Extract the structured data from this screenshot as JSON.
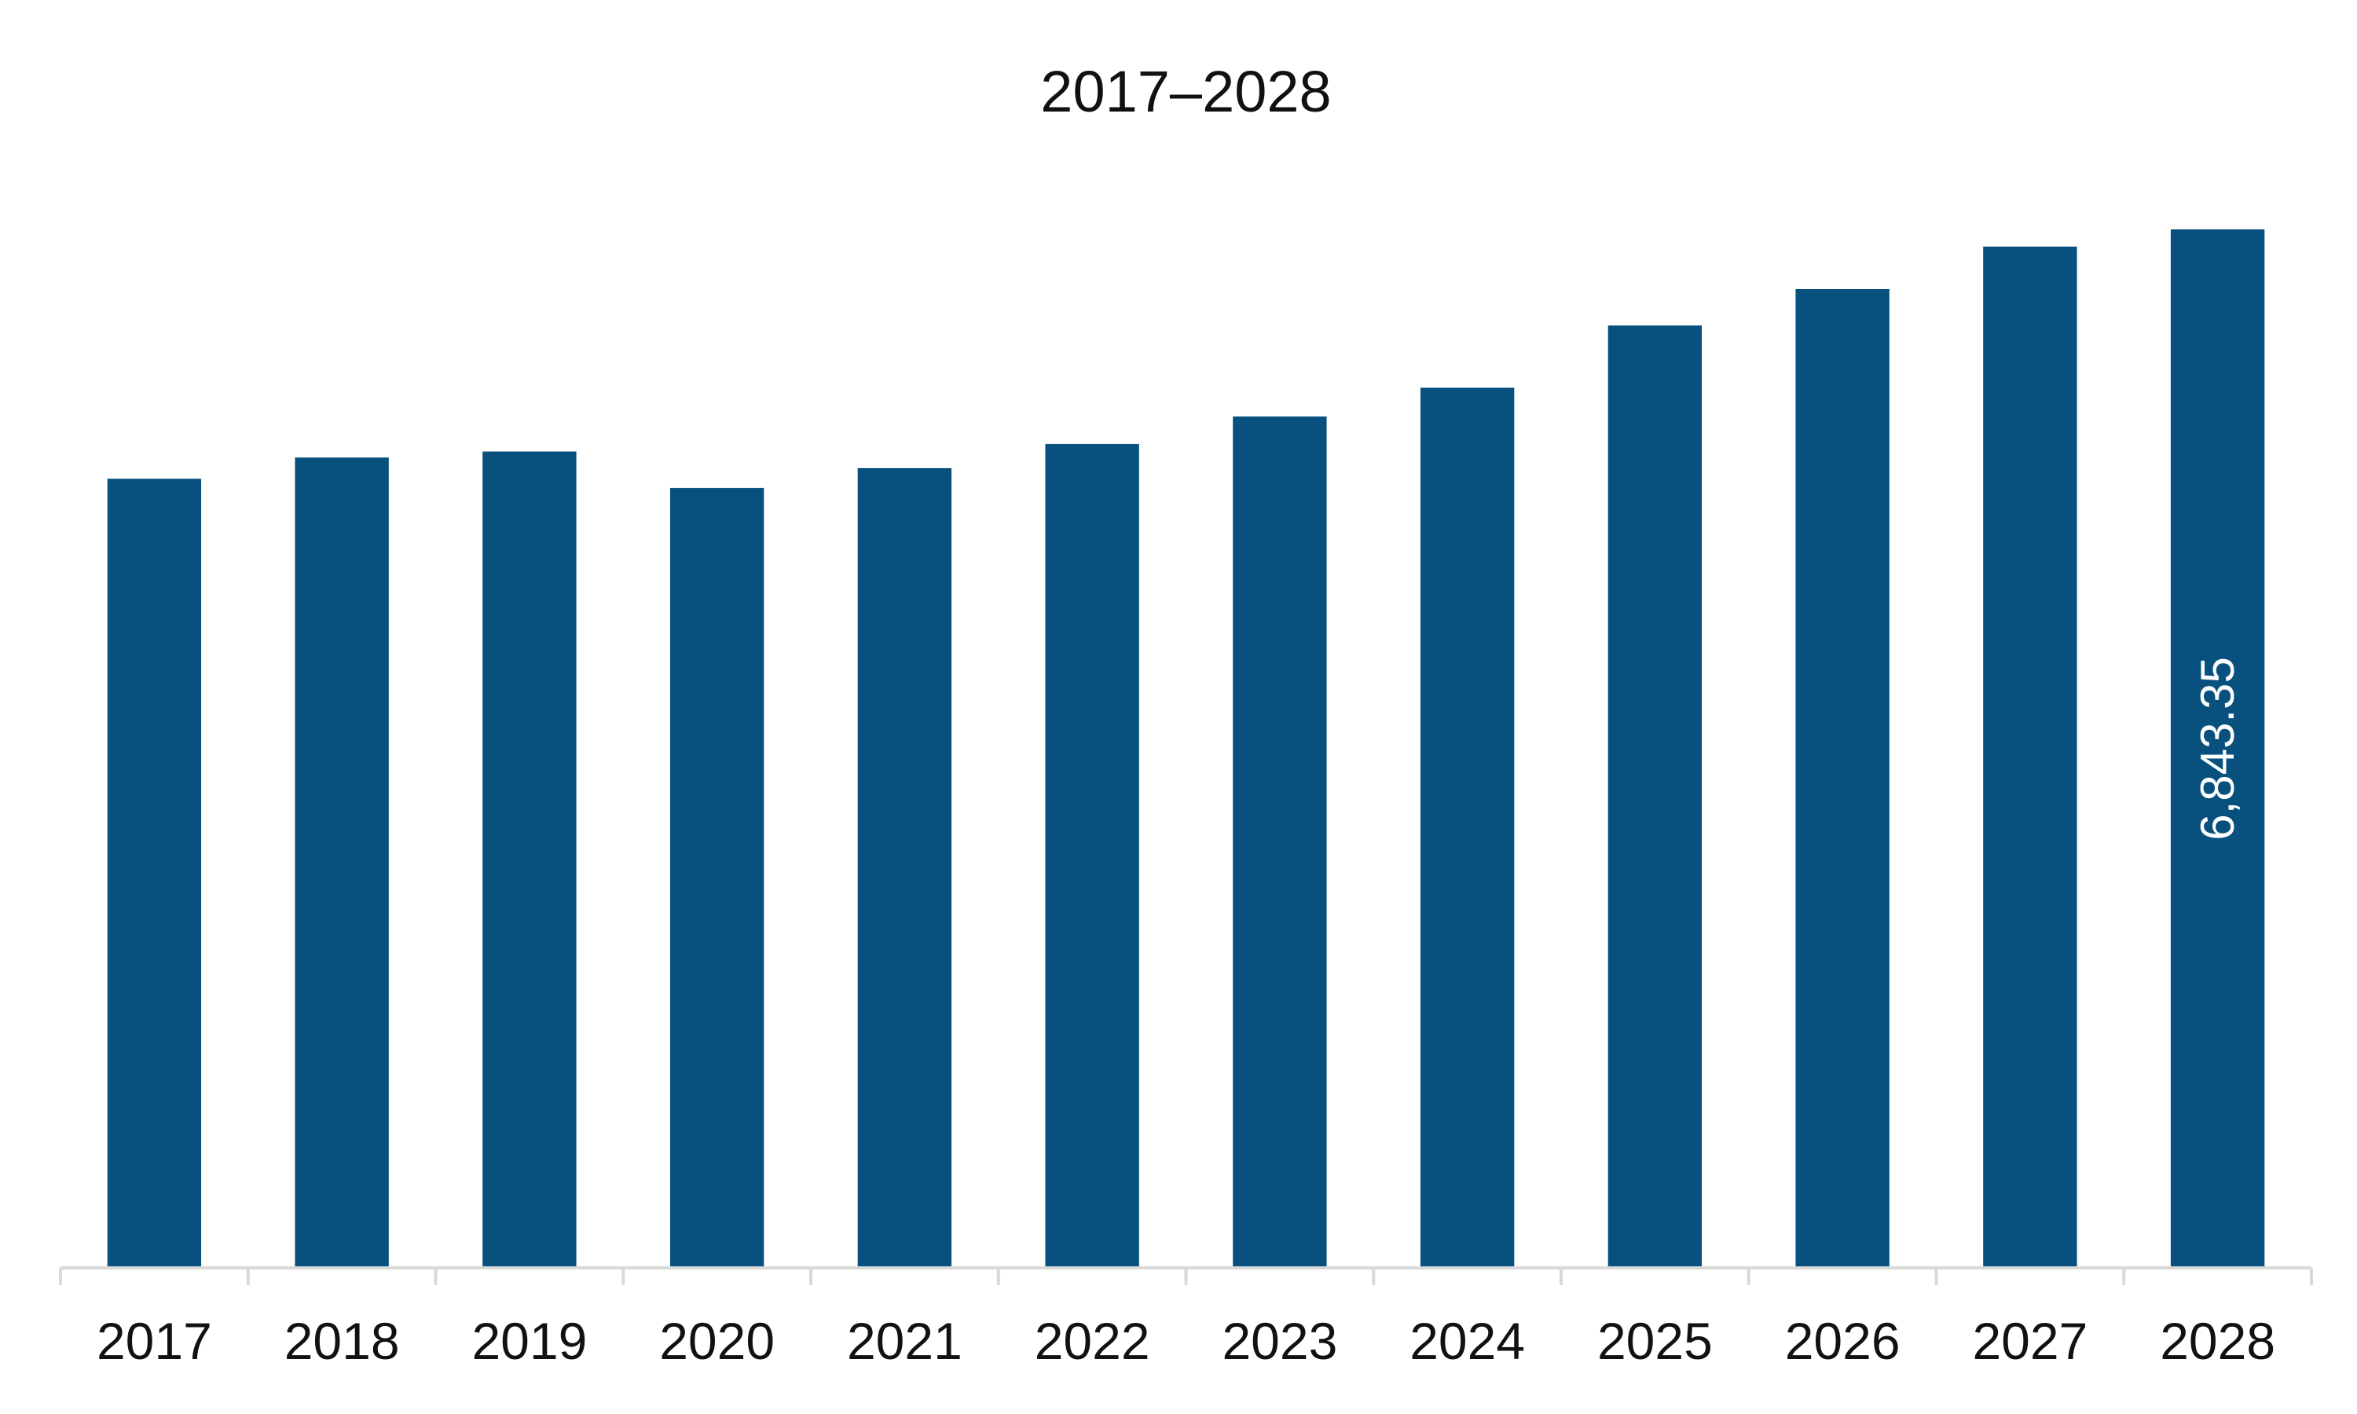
{
  "chart_data": {
    "type": "bar",
    "title": "2017–2028",
    "xlabel": "",
    "ylabel": "",
    "categories": [
      "2017",
      "2018",
      "2019",
      "2020",
      "2021",
      "2022",
      "2023",
      "2024",
      "2025",
      "2026",
      "2027",
      "2028"
    ],
    "series": [
      {
        "values": [
          5200,
          5340,
          5380,
          5140,
          5270,
          5430,
          5610,
          5800,
          6210,
          6450,
          6730,
          6843.35
        ],
        "data_labels": [
          "",
          "",
          "",
          "",
          "",
          "",
          "",
          "",
          "",
          "",
          "",
          "6,843.35"
        ]
      }
    ],
    "ylim": [
      0,
      6843.35
    ],
    "grid": false,
    "legend": "none",
    "bar_color": "#08517e",
    "axis_color": "#d9d9d9"
  }
}
